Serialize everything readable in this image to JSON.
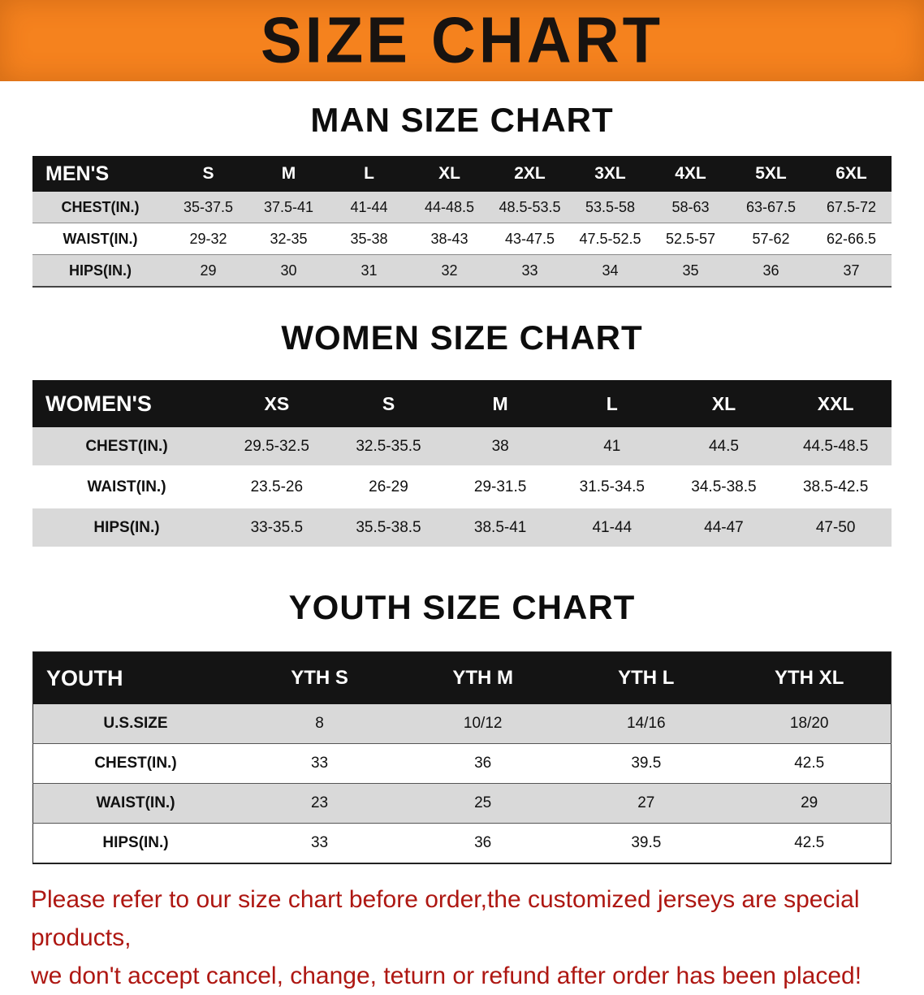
{
  "banner": {
    "title": "SIZE CHART"
  },
  "colors": {
    "banner_bg": "#f5821e",
    "table_header_bg": "#141414",
    "row_alt_bg": "#d9d9d9",
    "footer_text": "#ae1712"
  },
  "sections": [
    {
      "heading": "MAN SIZE CHART",
      "table": {
        "corner": "MEN'S",
        "sizes": [
          "S",
          "M",
          "L",
          "XL",
          "2XL",
          "3XL",
          "4XL",
          "5XL",
          "6XL"
        ],
        "rows": [
          {
            "label": "CHEST(IN.)",
            "values": [
              "35-37.5",
              "37.5-41",
              "41-44",
              "44-48.5",
              "48.5-53.5",
              "53.5-58",
              "58-63",
              "63-67.5",
              "67.5-72"
            ]
          },
          {
            "label": "WAIST(IN.)",
            "values": [
              "29-32",
              "32-35",
              "35-38",
              "38-43",
              "43-47.5",
              "47.5-52.5",
              "52.5-57",
              "57-62",
              "62-66.5"
            ]
          },
          {
            "label": "HIPS(IN.)",
            "values": [
              "29",
              "30",
              "31",
              "32",
              "33",
              "34",
              "35",
              "36",
              "37"
            ]
          }
        ]
      }
    },
    {
      "heading": "WOMEN SIZE CHART",
      "table": {
        "corner": "WOMEN'S",
        "sizes": [
          "XS",
          "S",
          "M",
          "L",
          "XL",
          "XXL"
        ],
        "rows": [
          {
            "label": "CHEST(IN.)",
            "values": [
              "29.5-32.5",
              "32.5-35.5",
              "38",
              "41",
              "44.5",
              "44.5-48.5"
            ]
          },
          {
            "label": "WAIST(IN.)",
            "values": [
              "23.5-26",
              "26-29",
              "29-31.5",
              "31.5-34.5",
              "34.5-38.5",
              "38.5-42.5"
            ]
          },
          {
            "label": "HIPS(IN.)",
            "values": [
              "33-35.5",
              "35.5-38.5",
              "38.5-41",
              "41-44",
              "44-47",
              "47-50"
            ]
          }
        ]
      }
    },
    {
      "heading": "YOUTH SIZE CHART",
      "table": {
        "corner": "YOUTH",
        "sizes": [
          "YTH S",
          "YTH M",
          "YTH L",
          "YTH XL"
        ],
        "rows": [
          {
            "label": "U.S.SIZE",
            "values": [
              "8",
              "10/12",
              "14/16",
              "18/20"
            ]
          },
          {
            "label": "CHEST(IN.)",
            "values": [
              "33",
              "36",
              "39.5",
              "42.5"
            ]
          },
          {
            "label": "WAIST(IN.)",
            "values": [
              "23",
              "25",
              "27",
              "29"
            ]
          },
          {
            "label": "HIPS(IN.)",
            "values": [
              "33",
              "36",
              "39.5",
              "42.5"
            ]
          }
        ]
      }
    }
  ],
  "footer": {
    "line1": "Please refer to our size chart before order,the customized jerseys are special products,",
    "line2": "we don't accept cancel, change, teturn or refund after order has been placed!"
  }
}
